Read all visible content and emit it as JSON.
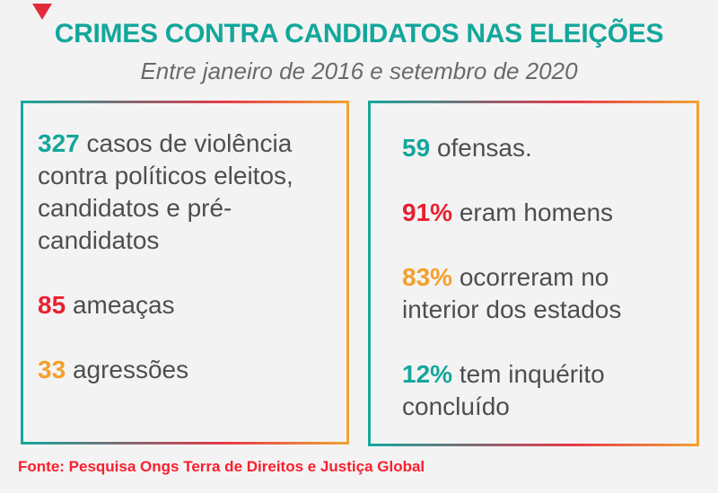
{
  "page": {
    "title": "CRIMES CONTRA CANDIDATOS NAS ELEIÇÕES",
    "subtitle": "Entre janeiro de 2016 e setembro de 2020",
    "source": "Fonte: Pesquisa Ongs Terra de Direitos e Justiça Global"
  },
  "colors": {
    "background": "#f4f3f4",
    "title_teal": "#13a79b",
    "stat_red": "#e8202f",
    "stat_orange": "#f5a02b",
    "body_text": "#4e4e50",
    "subtitle_gray": "#6c686d",
    "source_red": "#fa1f2d",
    "corner_triangle": "#e22b3b",
    "box_border_gradient": [
      "#16a89b",
      "#e63a49",
      "#f0a232"
    ]
  },
  "left_box": {
    "items": [
      {
        "value": "327",
        "color": "teal",
        "label": "casos de violência contra políticos eleitos, candidatos e pré-candidatos"
      },
      {
        "value": "85",
        "color": "red",
        "label": "ameaças"
      },
      {
        "value": "33",
        "color": "orange",
        "label": "agressões"
      }
    ]
  },
  "right_box": {
    "items": [
      {
        "value": "59",
        "color": "teal",
        "label": "ofensas."
      },
      {
        "value": "91%",
        "color": "red",
        "label": "eram homens"
      },
      {
        "value": "83%",
        "color": "orange",
        "label": "ocorreram no interior dos estados"
      },
      {
        "value": "12%",
        "color": "teal",
        "label": "tem inquérito concluído"
      }
    ]
  }
}
